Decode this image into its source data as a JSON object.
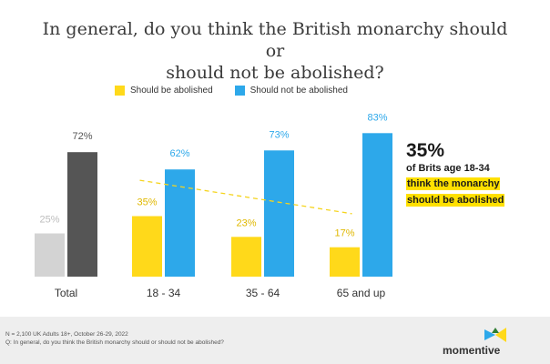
{
  "title_line1": "In general, do you think the British monarchy should or",
  "title_line2": "should not be abolished?",
  "callout": {
    "big": "35%",
    "line1": "of Brits age 18-34",
    "line2": "think the monarchy",
    "line3": "should be abolished"
  },
  "footer": {
    "note1": "N = 2,100 UK Adults 18+, October 26-29, 2022",
    "note2": "Q: In general, do you think the British monarchy should or should not be abolished?",
    "brand": "momentive",
    "brand_mark": "·"
  },
  "colors": {
    "yes": "#FFD91A",
    "no": "#2DA8EA",
    "total_yes": "#D3D3D3",
    "total_no": "#555555",
    "trend": "#F5D41D"
  },
  "chart_data": {
    "type": "bar",
    "categories": [
      "Total",
      "18 - 34",
      "35 - 64",
      "65 and up"
    ],
    "series": [
      {
        "name": "Should be abolished",
        "values": [
          25,
          35,
          23,
          17
        ],
        "labels": [
          "25%",
          "35%",
          "23%",
          "17%"
        ]
      },
      {
        "name": "Should not be abolished",
        "values": [
          72,
          62,
          73,
          83
        ],
        "labels": [
          "72%",
          "62%",
          "73%",
          "83%"
        ]
      }
    ],
    "trendline": {
      "series": "Should be abolished",
      "style": "dashed"
    },
    "ylim": [
      0,
      100
    ],
    "grid": false,
    "legend": "top-left"
  }
}
